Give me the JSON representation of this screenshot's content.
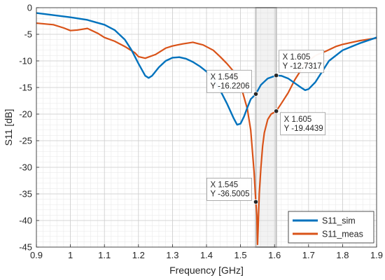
{
  "chart_data": {
    "type": "line",
    "xlabel": "Frequency [GHz]",
    "ylabel": "S11 [dB]",
    "xlim": [
      0.9,
      1.9
    ],
    "ylim": [
      -45,
      0
    ],
    "xticks": [
      0.9,
      1.0,
      1.1,
      1.2,
      1.3,
      1.4,
      1.5,
      1.6,
      1.7,
      1.8,
      1.9
    ],
    "xtick_labels": [
      "0.9",
      "1",
      "1.1",
      "1.2",
      "1.3",
      "1.4",
      "1.5",
      "1.6",
      "1.7",
      "1.8",
      "1.9"
    ],
    "yticks": [
      0,
      -5,
      -10,
      -15,
      -20,
      -25,
      -30,
      -35,
      -40,
      -45
    ],
    "ytick_labels": [
      "0",
      "-5",
      "-10",
      "-15",
      "-20",
      "-25",
      "-30",
      "-35",
      "-40",
      "-45"
    ],
    "grid": true,
    "minor_grid": true,
    "legend_position": "bottom-right",
    "highlight_band": [
      1.545,
      1.605
    ],
    "series": [
      {
        "name": "S11_sim",
        "color": "#0072BD",
        "x": [
          0.9,
          1.0,
          1.05,
          1.1,
          1.13,
          1.16,
          1.18,
          1.2,
          1.22,
          1.23,
          1.24,
          1.26,
          1.28,
          1.3,
          1.32,
          1.34,
          1.36,
          1.38,
          1.4,
          1.42,
          1.44,
          1.46,
          1.48,
          1.49,
          1.5,
          1.51,
          1.52,
          1.53,
          1.545,
          1.56,
          1.58,
          1.605,
          1.62,
          1.64,
          1.66,
          1.68,
          1.69,
          1.7,
          1.72,
          1.74,
          1.76,
          1.8,
          1.85,
          1.9
        ],
        "y": [
          -1.0,
          -1.8,
          -2.3,
          -3.2,
          -4.2,
          -6.0,
          -8.0,
          -10.5,
          -12.8,
          -13.2,
          -12.8,
          -11.2,
          -10.0,
          -9.4,
          -9.3,
          -9.6,
          -10.2,
          -11.0,
          -12.0,
          -13.5,
          -15.5,
          -18.0,
          -20.8,
          -22.0,
          -21.8,
          -20.5,
          -18.8,
          -17.2,
          -16.22,
          -14.5,
          -13.3,
          -12.73,
          -12.8,
          -13.3,
          -14.2,
          -15.1,
          -15.5,
          -15.3,
          -14.0,
          -12.0,
          -10.0,
          -8.0,
          -6.7,
          -5.6
        ]
      },
      {
        "name": "S11_meas",
        "color": "#D95319",
        "x": [
          0.9,
          0.95,
          0.98,
          1.0,
          1.02,
          1.05,
          1.08,
          1.1,
          1.13,
          1.16,
          1.19,
          1.2,
          1.22,
          1.25,
          1.28,
          1.3,
          1.33,
          1.36,
          1.39,
          1.42,
          1.44,
          1.46,
          1.48,
          1.5,
          1.52,
          1.53,
          1.535,
          1.54,
          1.545,
          1.548,
          1.55,
          1.552,
          1.555,
          1.56,
          1.565,
          1.57,
          1.58,
          1.59,
          1.605,
          1.62,
          1.64,
          1.66,
          1.68,
          1.7,
          1.72,
          1.75,
          1.78,
          1.8,
          1.85,
          1.9
        ],
        "y": [
          -2.9,
          -3.2,
          -3.8,
          -4.3,
          -4.2,
          -3.9,
          -4.8,
          -5.6,
          -6.3,
          -7.3,
          -8.5,
          -9.2,
          -9.5,
          -8.8,
          -7.6,
          -7.2,
          -6.8,
          -6.5,
          -7.0,
          -8.0,
          -9.2,
          -10.5,
          -12.0,
          -14.5,
          -19.0,
          -23.0,
          -27.0,
          -31.0,
          -36.5,
          -39.0,
          -44.5,
          -41.0,
          -35.0,
          -30.0,
          -26.0,
          -23.5,
          -21.0,
          -20.0,
          -19.44,
          -18.0,
          -16.0,
          -13.5,
          -11.5,
          -10.0,
          -9.0,
          -8.2,
          -7.3,
          -6.9,
          -6.2,
          -5.7
        ]
      }
    ],
    "datatips": [
      {
        "x": 1.545,
        "y": -16.2206,
        "line1": "X 1.545",
        "line2": "Y -16.2206",
        "side": "left"
      },
      {
        "x": 1.605,
        "y": -12.7317,
        "line1": "X 1.605",
        "line2": "Y -12.7317",
        "side": "right-up"
      },
      {
        "x": 1.605,
        "y": -19.4439,
        "line1": "X 1.605",
        "line2": "Y -19.4439",
        "side": "right-down"
      },
      {
        "x": 1.545,
        "y": -36.5005,
        "line1": "X 1.545",
        "line2": "Y -36.5005",
        "side": "left"
      }
    ]
  }
}
